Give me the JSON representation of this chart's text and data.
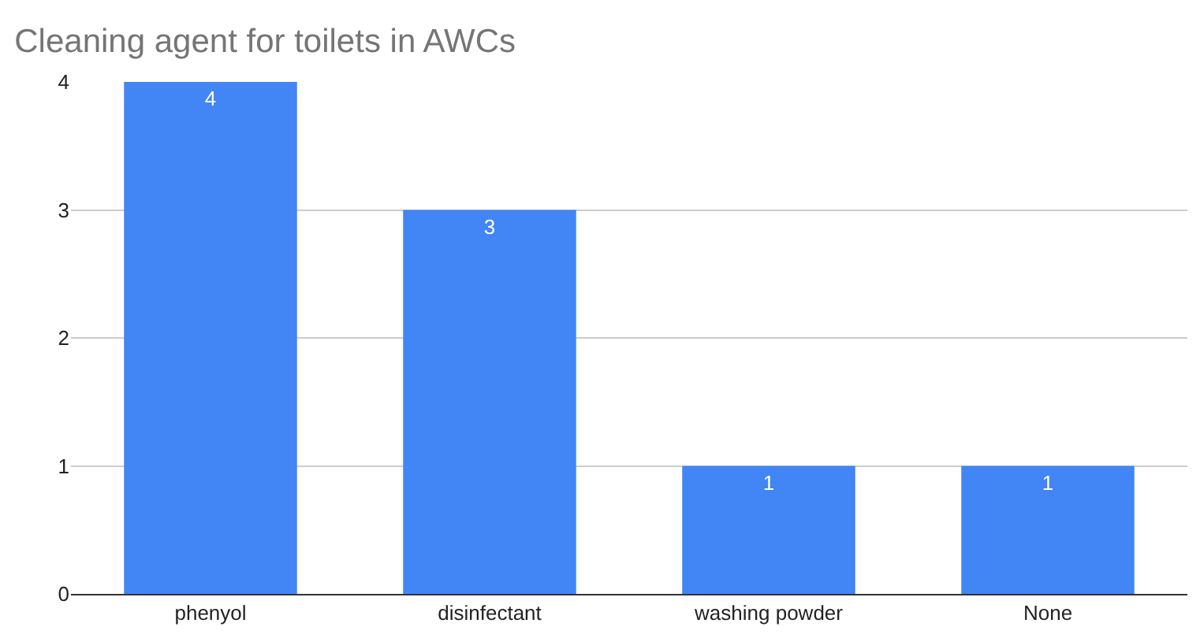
{
  "chart_data": {
    "type": "bar",
    "title": "Cleaning agent for toilets in AWCs",
    "categories": [
      "phenyol",
      "disinfectant",
      "washing powder",
      "None"
    ],
    "values": [
      4,
      3,
      1,
      1
    ],
    "color": "#4285f4",
    "ylim": [
      0,
      4
    ],
    "yticks": [
      0,
      1,
      2,
      3,
      4
    ],
    "grid": "y",
    "data_labels": true
  }
}
